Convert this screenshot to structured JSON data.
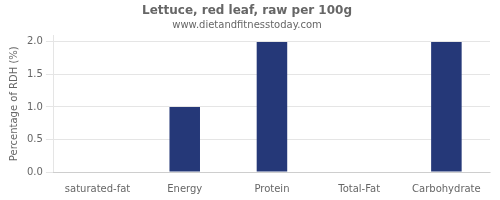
{
  "chart_data": {
    "type": "bar",
    "title": "Lettuce, red leaf, raw per 100g",
    "subtitle": "www.dietandfitnesstoday.com",
    "categories": [
      "saturated-fat",
      "Energy",
      "Protein",
      "Total-Fat",
      "Carbohydrate"
    ],
    "values": [
      0.0,
      1.0,
      2.0,
      0.0,
      2.0
    ],
    "color": "#253878",
    "ylabel": "Percentage of RDH (%)",
    "ylim": [
      0,
      2.1
    ],
    "yticks": [
      {
        "value": 0,
        "label": "0.0"
      },
      0.5,
      {
        "value": 1,
        "label": "1.0"
      },
      1.5,
      {
        "value": 2,
        "label": "2.0"
      }
    ],
    "grid": true
  }
}
